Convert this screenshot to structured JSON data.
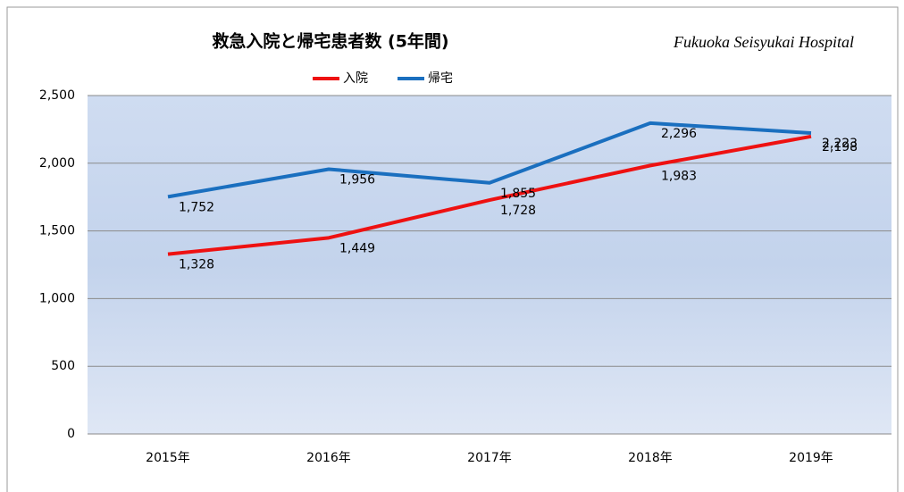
{
  "chart_data": {
    "type": "line",
    "title": "救急入院と帰宅患者数 (5年間)",
    "subtitle": "Fukuoka Seisyukai Hospital",
    "categories": [
      "2015年",
      "2016年",
      "2017年",
      "2018年",
      "2019年"
    ],
    "series": [
      {
        "name": "入院",
        "color": "#ee1111",
        "values": [
          1328,
          1449,
          1728,
          1983,
          2198
        ],
        "value_labels": [
          "1,328",
          "1,449",
          "1,728",
          "1,983",
          "2,198"
        ]
      },
      {
        "name": "帰宅",
        "color": "#1a6fbf",
        "values": [
          1752,
          1956,
          1855,
          2296,
          2223
        ],
        "value_labels": [
          "1,752",
          "1,956",
          "1,855",
          "2,296",
          "2,223"
        ]
      }
    ],
    "ylim": [
      0,
      2500
    ],
    "yticks": [
      0,
      500,
      {
        "value": 1000,
        "label": "1,000"
      },
      {
        "value": 1500,
        "label": "1,500"
      },
      {
        "value": 2000,
        "label": "2,000"
      },
      {
        "value": 2500,
        "label": "2,500"
      }
    ],
    "grid": true,
    "legend": "top"
  }
}
